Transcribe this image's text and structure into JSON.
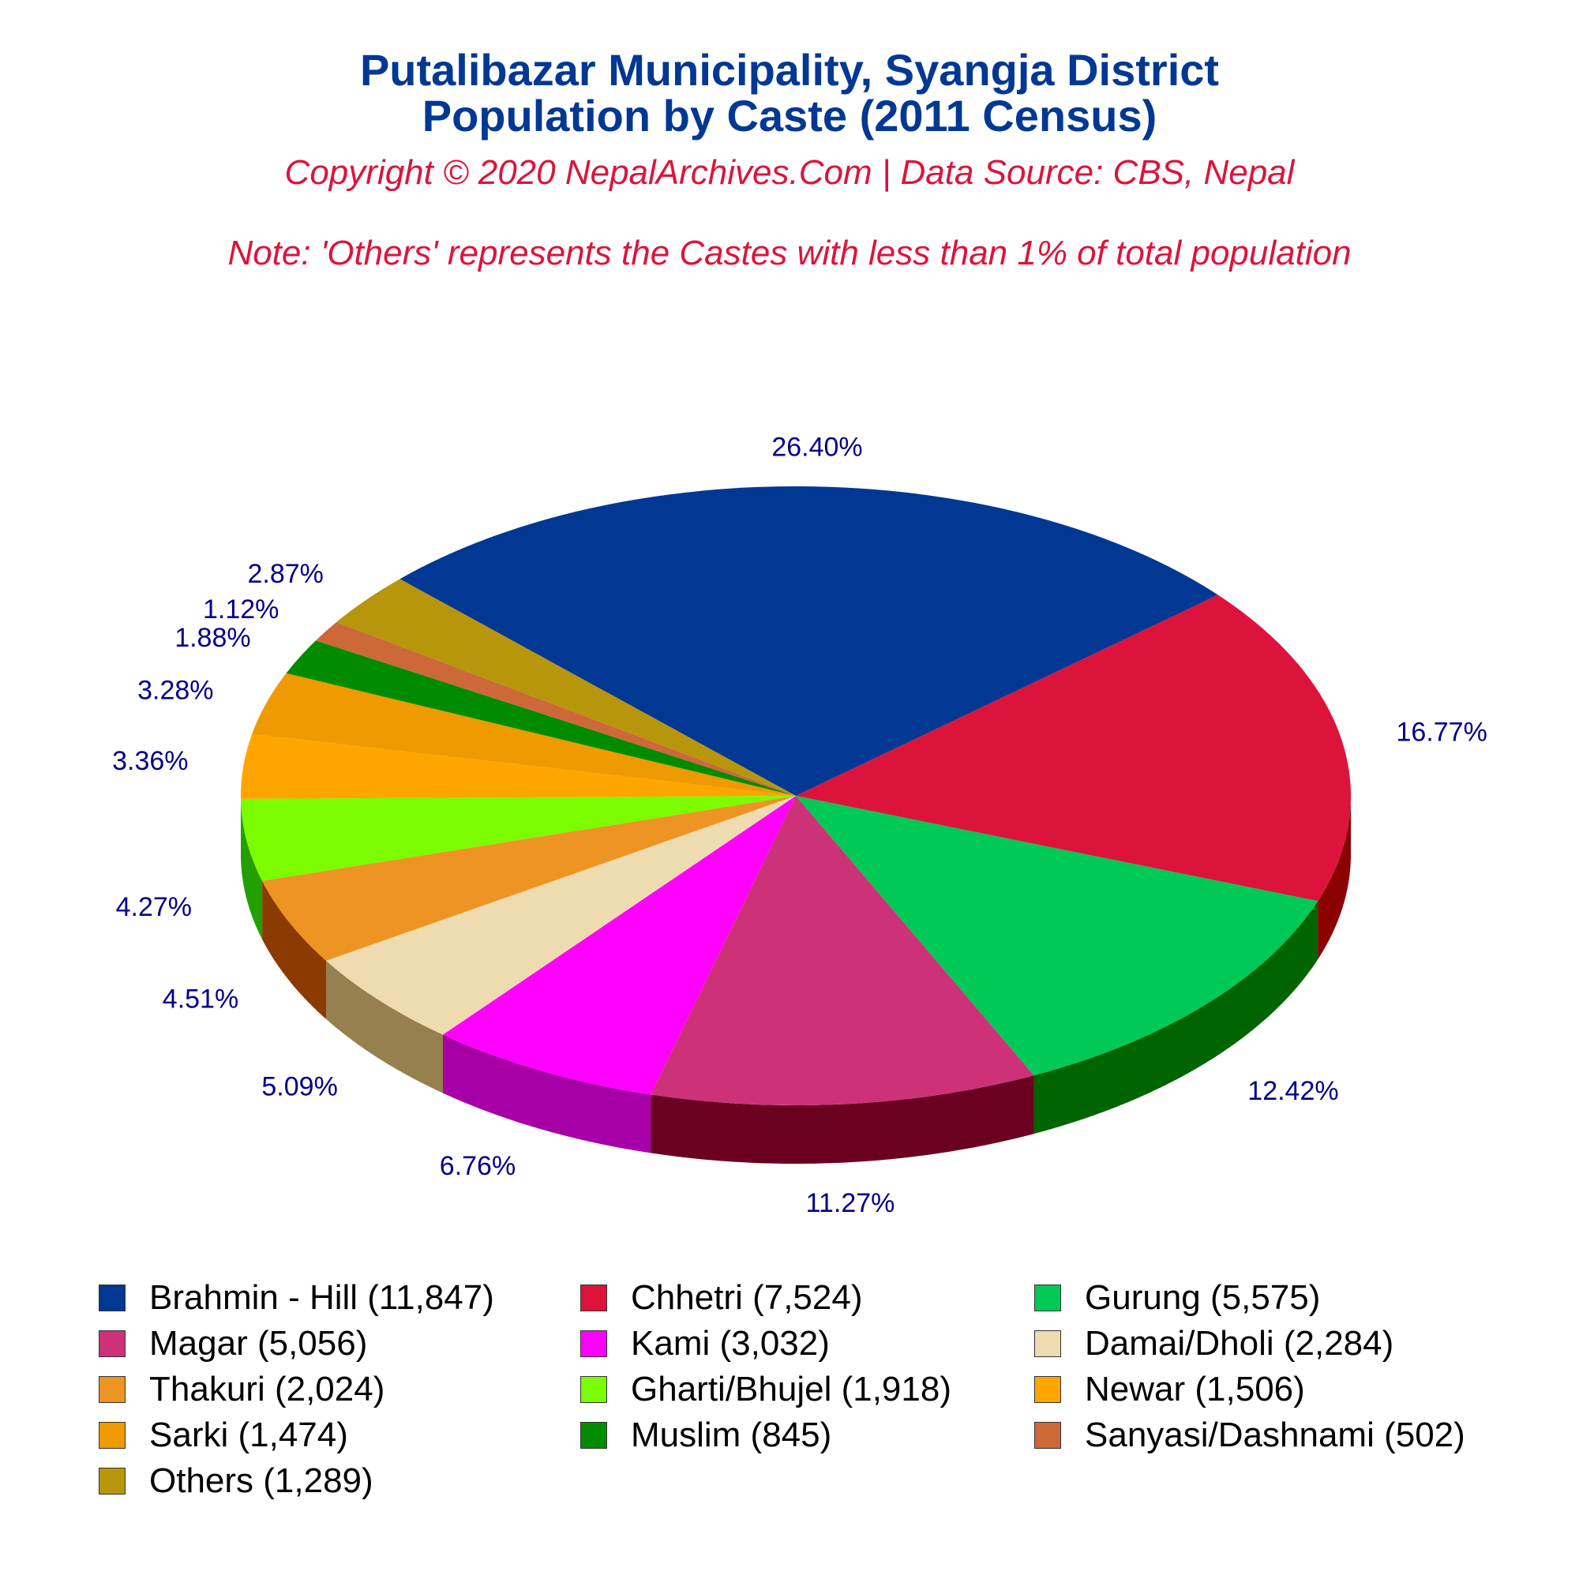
{
  "title": {
    "line1": "Putalibazar Municipality, Syangja District",
    "line2": "Population by Caste (2011 Census)"
  },
  "subtitle": "Copyright © 2020 NepalArchives.Com | Data Source: CBS, Nepal",
  "note": "Note: 'Others' represents the Castes with less than 1% of total population",
  "chart_data": {
    "type": "pie",
    "style": "3d",
    "title": "Putalibazar Municipality, Syangja District Population by Caste (2011 Census)",
    "legend_position": "bottom",
    "slices": [
      {
        "label": "Brahmin - Hill",
        "value": 11847,
        "percent_label": "26.40%",
        "legend": "Brahmin - Hill (11,847)",
        "color": "#003893",
        "side_color": "#001f5c"
      },
      {
        "label": "Chhetri",
        "value": 7524,
        "percent_label": "16.77%",
        "legend": "Chhetri (7,524)",
        "color": "#dc143c",
        "side_color": "#8b0000"
      },
      {
        "label": "Gurung",
        "value": 5575,
        "percent_label": "12.42%",
        "legend": "Gurung (5,575)",
        "color": "#00c957",
        "side_color": "#006400"
      },
      {
        "label": "Magar",
        "value": 5056,
        "percent_label": "11.27%",
        "legend": "Magar (5,056)",
        "color": "#cd3278",
        "side_color": "#6b0020"
      },
      {
        "label": "Kami",
        "value": 3032,
        "percent_label": "6.76%",
        "legend": "Kami (3,032)",
        "color": "#ff00ff",
        "side_color": "#a600a6"
      },
      {
        "label": "Damai/Dholi",
        "value": 2284,
        "percent_label": "5.09%",
        "legend": "Damai/Dholi (2,284)",
        "color": "#eedcb0",
        "side_color": "#968050"
      },
      {
        "label": "Thakuri",
        "value": 2024,
        "percent_label": "4.51%",
        "legend": "Thakuri (2,024)",
        "color": "#ee9422",
        "side_color": "#8b3a00"
      },
      {
        "label": "Gharti/Bhujel",
        "value": 1918,
        "percent_label": "4.27%",
        "legend": "Gharti/Bhujel (1,918)",
        "color": "#7cfc00",
        "side_color": "#22a000"
      },
      {
        "label": "Newar",
        "value": 1506,
        "percent_label": "3.36%",
        "legend": "Newar (1,506)",
        "color": "#ffa500",
        "side_color": "#b35c00"
      },
      {
        "label": "Sarki",
        "value": 1474,
        "percent_label": "3.28%",
        "legend": "Sarki (1,474)",
        "color": "#ee9a00",
        "side_color": "#a05a00"
      },
      {
        "label": "Muslim",
        "value": 845,
        "percent_label": "1.88%",
        "legend": "Muslim (845)",
        "color": "#008b00",
        "side_color": "#004d00"
      },
      {
        "label": "Sanyasi/Dashnami",
        "value": 502,
        "percent_label": "1.12%",
        "legend": "Sanyasi/Dashnami (502)",
        "color": "#cd6839",
        "side_color": "#7a3a1a"
      },
      {
        "label": "Others",
        "value": 1289,
        "percent_label": "2.87%",
        "legend": "Others (1,289)",
        "color": "#b8960c",
        "side_color": "#6e5a00"
      }
    ]
  },
  "colors": {
    "title": "#003893",
    "subtitle": "#dc143c",
    "percent_labels": "#00008b"
  }
}
